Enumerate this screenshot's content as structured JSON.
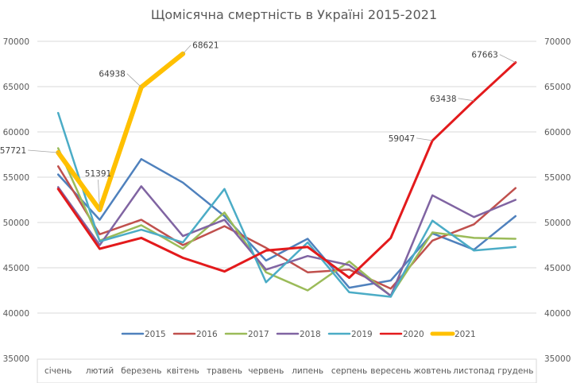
{
  "chart_data": {
    "type": "line",
    "title": "Щомісячна смертність в Україні 2015-2021",
    "xlabel": "",
    "ylabel": "",
    "ylim": [
      35000,
      70000
    ],
    "yticks": [
      35000,
      40000,
      45000,
      50000,
      55000,
      60000,
      65000,
      70000
    ],
    "secondary_yticks": [
      35000,
      40000,
      45000,
      50000,
      55000,
      60000,
      65000,
      70000
    ],
    "grid": true,
    "legend_position": "bottom-inside",
    "categories": [
      "січень",
      "лютий",
      "березень",
      "квітень",
      "травень",
      "червень",
      "липень",
      "серпень",
      "вересень",
      "жовтень",
      "листопад",
      "грудень"
    ],
    "series": [
      {
        "name": "2015",
        "color": "#4F81BD",
        "width": 2.5,
        "values": [
          55300,
          50300,
          57000,
          54400,
          50700,
          45800,
          48200,
          42800,
          43600,
          48800,
          47000,
          50700
        ]
      },
      {
        "name": "2016",
        "color": "#C0504D",
        "width": 2.5,
        "values": [
          56200,
          48700,
          50300,
          47500,
          49600,
          47200,
          44500,
          44800,
          42700,
          48000,
          49800,
          53800
        ]
      },
      {
        "name": "2017",
        "color": "#9BBB59",
        "width": 2.5,
        "values": [
          58200,
          48000,
          49700,
          47100,
          51100,
          44500,
          42500,
          45700,
          41900,
          48900,
          48300,
          48200
        ]
      },
      {
        "name": "2018",
        "color": "#8064A2",
        "width": 2.5,
        "values": [
          53900,
          47500,
          54000,
          48500,
          50300,
          44800,
          46300,
          45300,
          41900,
          53000,
          50600,
          52500
        ]
      },
      {
        "name": "2019",
        "color": "#4BACC6",
        "width": 2.5,
        "values": [
          62100,
          47900,
          49200,
          47800,
          53700,
          43400,
          47800,
          42300,
          41800,
          50200,
          46900,
          47300
        ]
      },
      {
        "name": "2020",
        "color": "#E31A1C",
        "width": 3,
        "values": [
          53700,
          47100,
          48300,
          46100,
          44600,
          46900,
          47300,
          43900,
          48300,
          59047,
          63438,
          67663
        ]
      },
      {
        "name": "2021",
        "color": "#FFC000",
        "width": 6,
        "values": [
          57721,
          51391,
          64938,
          68621,
          null,
          null,
          null,
          null,
          null,
          null,
          null,
          null
        ]
      }
    ],
    "annotations": [
      {
        "series": "2021",
        "category": "січень",
        "text": "57721"
      },
      {
        "series": "2021",
        "category": "лютий",
        "text": "51391"
      },
      {
        "series": "2021",
        "category": "березень",
        "text": "64938"
      },
      {
        "series": "2021",
        "category": "квітень",
        "text": "68621"
      },
      {
        "series": "2020",
        "category": "жовтень",
        "text": "59047"
      },
      {
        "series": "2020",
        "category": "листопад",
        "text": "63438"
      },
      {
        "series": "2020",
        "category": "грудень",
        "text": "67663"
      }
    ]
  }
}
